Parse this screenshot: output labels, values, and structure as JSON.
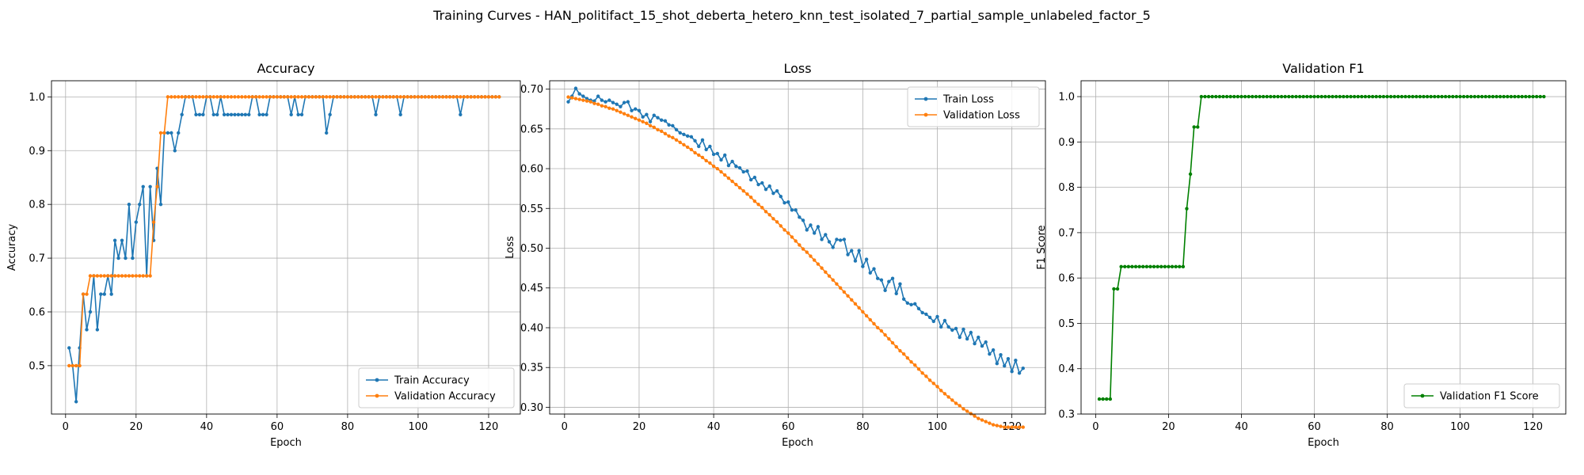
{
  "figure": {
    "suptitle": "Training Curves - HAN_politifact_15_shot_deberta_hetero_knn_test_isolated_7_partial_sample_unlabeled_factor_5"
  },
  "chart_data": [
    {
      "type": "line",
      "title": "Accuracy",
      "xlabel": "Epoch",
      "ylabel": "Accuracy",
      "xlim": [
        -4,
        129
      ],
      "ylim": [
        0.41,
        1.03
      ],
      "xticks": [
        0,
        20,
        40,
        60,
        80,
        100,
        120
      ],
      "yticks": [
        0.5,
        0.6,
        0.7,
        0.8,
        0.9,
        1.0
      ],
      "ytick_labels": [
        "0.5",
        "0.6",
        "0.7",
        "0.8",
        "0.9",
        "1.0"
      ],
      "grid": true,
      "legend_position": "lower-right",
      "series": [
        {
          "name": "Train Accuracy",
          "color": "#1f77b4",
          "x_start": 1,
          "values": [
            0.533,
            0.5,
            0.433,
            0.533,
            0.633,
            0.567,
            0.6,
            0.667,
            0.567,
            0.633,
            0.633,
            0.667,
            0.633,
            0.733,
            0.7,
            0.733,
            0.7,
            0.8,
            0.7,
            0.767,
            0.8,
            0.833,
            0.667,
            0.833,
            0.733,
            0.867,
            0.8,
            0.933,
            0.933,
            0.933,
            0.9,
            0.933,
            0.967,
            1.0,
            1.0,
            1.0,
            0.967,
            0.967,
            0.967,
            1.0,
            1.0,
            0.967,
            0.967,
            1.0,
            0.967,
            0.967,
            0.967,
            0.967,
            0.967,
            0.967,
            0.967,
            0.967,
            1.0,
            1.0,
            0.967,
            0.967,
            0.967,
            1.0,
            1.0,
            1.0,
            1.0,
            1.0,
            1.0,
            0.967,
            1.0,
            0.967,
            0.967,
            1.0,
            1.0,
            1.0,
            1.0,
            1.0,
            1.0,
            0.933,
            0.967,
            1.0,
            1.0,
            1.0,
            1.0,
            1.0,
            1.0,
            1.0,
            1.0,
            1.0,
            1.0,
            1.0,
            1.0,
            0.967,
            1.0,
            1.0,
            1.0,
            1.0,
            1.0,
            1.0,
            0.967,
            1.0,
            1.0,
            1.0,
            1.0,
            1.0,
            1.0,
            1.0,
            1.0,
            1.0,
            1.0,
            1.0,
            1.0,
            1.0,
            1.0,
            1.0,
            1.0,
            0.967,
            1.0,
            1.0,
            1.0,
            1.0,
            1.0,
            1.0,
            1.0,
            1.0,
            1.0,
            1.0,
            1.0
          ]
        },
        {
          "name": "Validation Accuracy",
          "color": "#ff7f0e",
          "x_start": 1,
          "values": [
            0.5,
            0.5,
            0.5,
            0.5,
            0.633,
            0.633,
            0.667,
            0.667,
            0.667,
            0.667,
            0.667,
            0.667,
            0.667,
            0.667,
            0.667,
            0.667,
            0.667,
            0.667,
            0.667,
            0.667,
            0.667,
            0.667,
            0.667,
            0.667,
            0.767,
            0.833,
            0.933,
            0.933,
            1.0,
            1.0,
            1.0,
            1.0,
            1.0,
            1.0,
            1.0,
            1.0,
            1.0,
            1.0,
            1.0,
            1.0,
            1.0,
            1.0,
            1.0,
            1.0,
            1.0,
            1.0,
            1.0,
            1.0,
            1.0,
            1.0,
            1.0,
            1.0,
            1.0,
            1.0,
            1.0,
            1.0,
            1.0,
            1.0,
            1.0,
            1.0,
            1.0,
            1.0,
            1.0,
            1.0,
            1.0,
            1.0,
            1.0,
            1.0,
            1.0,
            1.0,
            1.0,
            1.0,
            1.0,
            1.0,
            1.0,
            1.0,
            1.0,
            1.0,
            1.0,
            1.0,
            1.0,
            1.0,
            1.0,
            1.0,
            1.0,
            1.0,
            1.0,
            1.0,
            1.0,
            1.0,
            1.0,
            1.0,
            1.0,
            1.0,
            1.0,
            1.0,
            1.0,
            1.0,
            1.0,
            1.0,
            1.0,
            1.0,
            1.0,
            1.0,
            1.0,
            1.0,
            1.0,
            1.0,
            1.0,
            1.0,
            1.0,
            1.0,
            1.0,
            1.0,
            1.0,
            1.0,
            1.0,
            1.0,
            1.0,
            1.0,
            1.0,
            1.0,
            1.0
          ]
        }
      ]
    },
    {
      "type": "line",
      "title": "Loss",
      "xlabel": "Epoch",
      "ylabel": "Loss",
      "xlim": [
        -4,
        129
      ],
      "ylim": [
        0.2915,
        0.7105
      ],
      "xticks": [
        0,
        20,
        40,
        60,
        80,
        100,
        120
      ],
      "yticks": [
        0.3,
        0.35,
        0.4,
        0.45,
        0.5,
        0.55,
        0.6,
        0.65,
        0.7
      ],
      "ytick_labels": [
        "0.30",
        "0.35",
        "0.40",
        "0.45",
        "0.50",
        "0.55",
        "0.60",
        "0.65",
        "0.70"
      ],
      "grid": true,
      "legend_position": "upper-right",
      "series": [
        {
          "name": "Train Loss",
          "color": "#1f77b4",
          "x_start": 1,
          "values": [
            0.684,
            0.691,
            0.701,
            0.694,
            0.691,
            0.688,
            0.686,
            0.685,
            0.691,
            0.686,
            0.684,
            0.686,
            0.683,
            0.681,
            0.678,
            0.683,
            0.684,
            0.673,
            0.675,
            0.673,
            0.665,
            0.668,
            0.659,
            0.667,
            0.664,
            0.661,
            0.66,
            0.655,
            0.654,
            0.649,
            0.645,
            0.643,
            0.641,
            0.64,
            0.635,
            0.628,
            0.636,
            0.624,
            0.628,
            0.618,
            0.619,
            0.611,
            0.617,
            0.604,
            0.609,
            0.603,
            0.601,
            0.596,
            0.597,
            0.586,
            0.589,
            0.58,
            0.582,
            0.574,
            0.578,
            0.569,
            0.572,
            0.565,
            0.557,
            0.558,
            0.548,
            0.548,
            0.539,
            0.535,
            0.523,
            0.529,
            0.519,
            0.527,
            0.511,
            0.517,
            0.508,
            0.501,
            0.511,
            0.51,
            0.511,
            0.492,
            0.497,
            0.484,
            0.497,
            0.477,
            0.486,
            0.469,
            0.474,
            0.462,
            0.46,
            0.447,
            0.458,
            0.462,
            0.443,
            0.455,
            0.436,
            0.431,
            0.429,
            0.43,
            0.424,
            0.419,
            0.417,
            0.413,
            0.408,
            0.414,
            0.401,
            0.409,
            0.401,
            0.397,
            0.399,
            0.388,
            0.398,
            0.386,
            0.394,
            0.38,
            0.388,
            0.377,
            0.382,
            0.367,
            0.372,
            0.355,
            0.366,
            0.352,
            0.361,
            0.345,
            0.359,
            0.343,
            0.349
          ]
        },
        {
          "name": "Validation Loss",
          "color": "#ff7f0e",
          "x_start": 1,
          "values": [
            0.69,
            0.689,
            0.688,
            0.687,
            0.686,
            0.685,
            0.684,
            0.682,
            0.681,
            0.679,
            0.678,
            0.676,
            0.675,
            0.673,
            0.671,
            0.669,
            0.667,
            0.665,
            0.663,
            0.661,
            0.659,
            0.657,
            0.654,
            0.652,
            0.649,
            0.647,
            0.644,
            0.641,
            0.639,
            0.636,
            0.633,
            0.63,
            0.627,
            0.624,
            0.62,
            0.617,
            0.614,
            0.61,
            0.607,
            0.603,
            0.6,
            0.596,
            0.592,
            0.588,
            0.584,
            0.58,
            0.576,
            0.572,
            0.568,
            0.564,
            0.559,
            0.555,
            0.551,
            0.546,
            0.542,
            0.537,
            0.533,
            0.528,
            0.523,
            0.519,
            0.514,
            0.509,
            0.504,
            0.499,
            0.495,
            0.49,
            0.485,
            0.48,
            0.475,
            0.47,
            0.465,
            0.46,
            0.455,
            0.45,
            0.445,
            0.44,
            0.435,
            0.43,
            0.425,
            0.42,
            0.415,
            0.41,
            0.405,
            0.4,
            0.396,
            0.391,
            0.386,
            0.381,
            0.376,
            0.371,
            0.367,
            0.362,
            0.357,
            0.353,
            0.348,
            0.343,
            0.339,
            0.334,
            0.33,
            0.326,
            0.321,
            0.317,
            0.313,
            0.309,
            0.305,
            0.302,
            0.298,
            0.295,
            0.292,
            0.289,
            0.286,
            0.284,
            0.282,
            0.28,
            0.278,
            0.277,
            0.276,
            0.275,
            0.275,
            0.275,
            0.275,
            0.275,
            0.275
          ]
        }
      ]
    },
    {
      "type": "line",
      "title": "Validation F1",
      "xlabel": "Epoch",
      "ylabel": "F1 Score",
      "xlim": [
        -4,
        129
      ],
      "ylim": [
        0.3,
        1.035
      ],
      "xticks": [
        0,
        20,
        40,
        60,
        80,
        100,
        120
      ],
      "yticks": [
        0.3,
        0.4,
        0.5,
        0.6,
        0.7,
        0.8,
        0.9,
        1.0
      ],
      "ytick_labels": [
        "0.3",
        "0.4",
        "0.5",
        "0.6",
        "0.7",
        "0.8",
        "0.9",
        "1.0"
      ],
      "grid": true,
      "legend_position": "lower-right",
      "series": [
        {
          "name": "Validation F1 Score",
          "color": "#008000",
          "x_start": 1,
          "values": [
            0.333,
            0.333,
            0.333,
            0.333,
            0.576,
            0.576,
            0.625,
            0.625,
            0.625,
            0.625,
            0.625,
            0.625,
            0.625,
            0.625,
            0.625,
            0.625,
            0.625,
            0.625,
            0.625,
            0.625,
            0.625,
            0.625,
            0.625,
            0.625,
            0.753,
            0.829,
            0.933,
            0.933,
            1.0,
            1.0,
            1.0,
            1.0,
            1.0,
            1.0,
            1.0,
            1.0,
            1.0,
            1.0,
            1.0,
            1.0,
            1.0,
            1.0,
            1.0,
            1.0,
            1.0,
            1.0,
            1.0,
            1.0,
            1.0,
            1.0,
            1.0,
            1.0,
            1.0,
            1.0,
            1.0,
            1.0,
            1.0,
            1.0,
            1.0,
            1.0,
            1.0,
            1.0,
            1.0,
            1.0,
            1.0,
            1.0,
            1.0,
            1.0,
            1.0,
            1.0,
            1.0,
            1.0,
            1.0,
            1.0,
            1.0,
            1.0,
            1.0,
            1.0,
            1.0,
            1.0,
            1.0,
            1.0,
            1.0,
            1.0,
            1.0,
            1.0,
            1.0,
            1.0,
            1.0,
            1.0,
            1.0,
            1.0,
            1.0,
            1.0,
            1.0,
            1.0,
            1.0,
            1.0,
            1.0,
            1.0,
            1.0,
            1.0,
            1.0,
            1.0,
            1.0,
            1.0,
            1.0,
            1.0,
            1.0,
            1.0,
            1.0,
            1.0,
            1.0,
            1.0,
            1.0,
            1.0,
            1.0,
            1.0,
            1.0,
            1.0,
            1.0,
            1.0,
            1.0
          ]
        }
      ]
    }
  ]
}
